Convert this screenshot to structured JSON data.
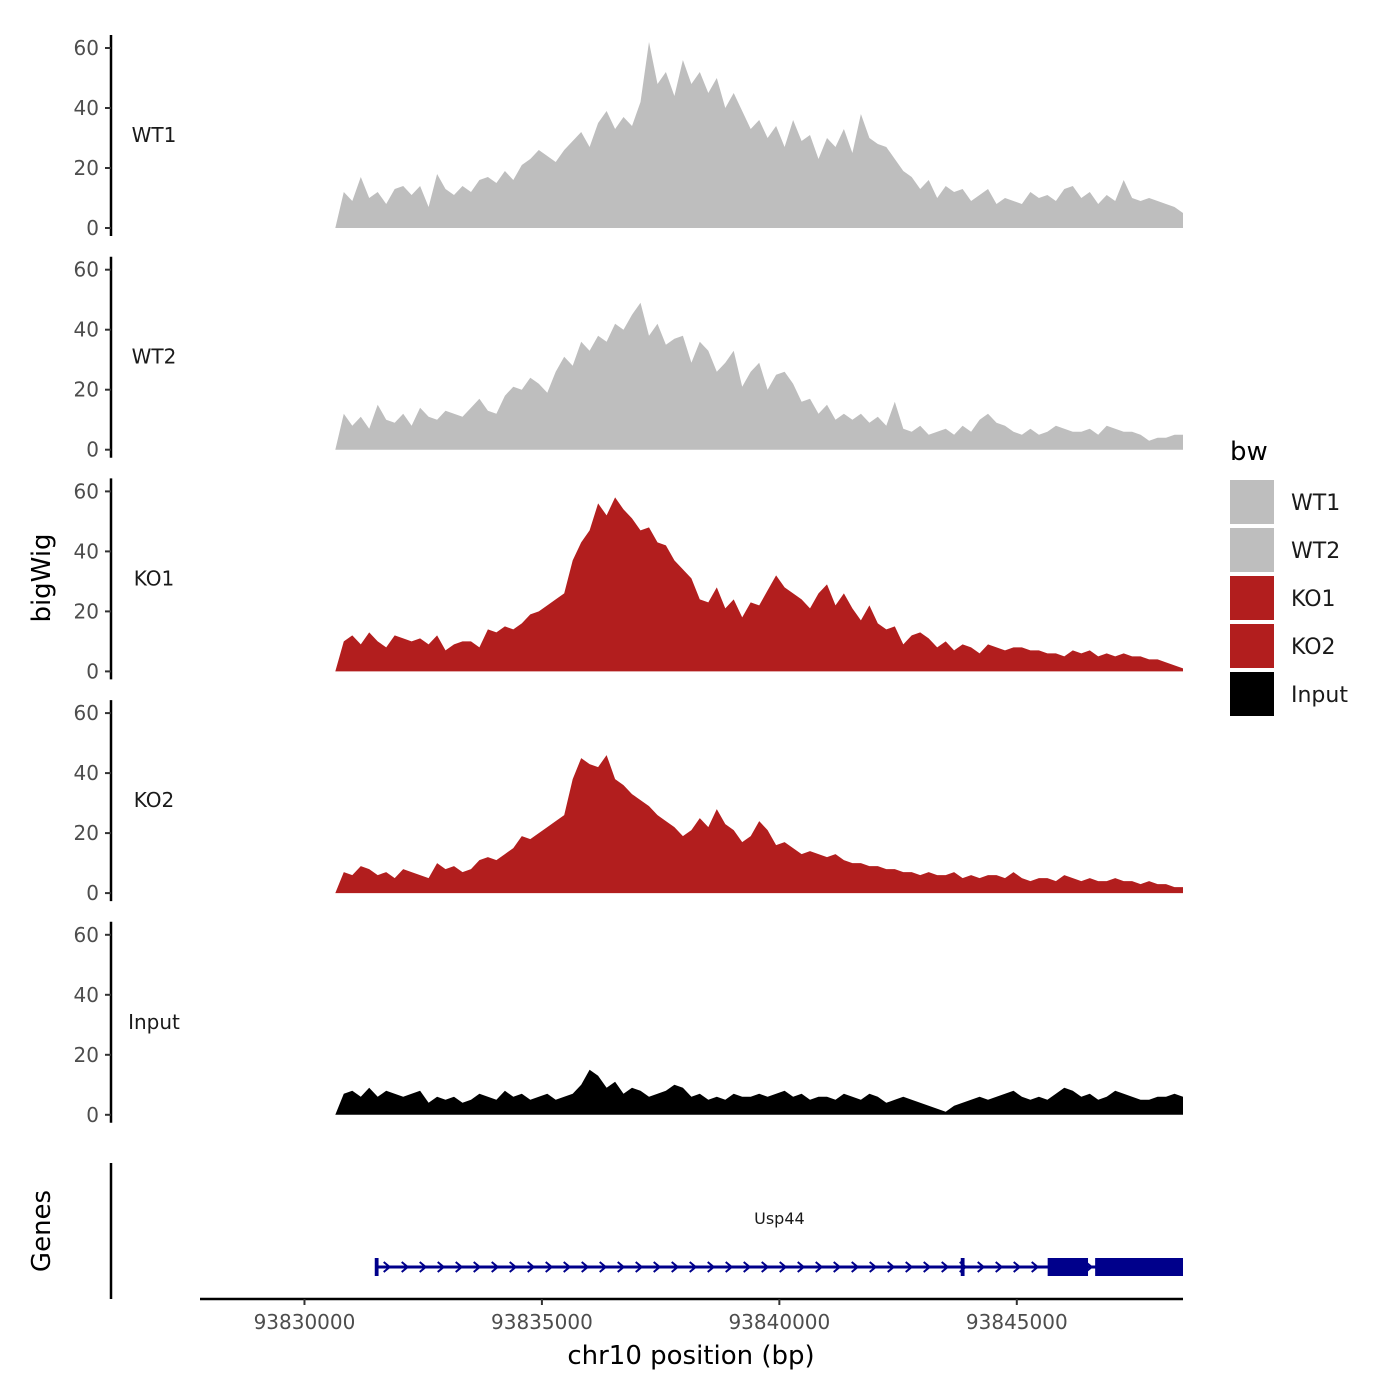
{
  "chart_data": {
    "type": "area",
    "chromosome": "chr10",
    "xlabel": "chr10 position (bp)",
    "ylabel": "bigWig",
    "genes_panel_label": "Genes",
    "xlim": [
      93827800,
      93848500
    ],
    "x_ticks": [
      93830000,
      93835000,
      93840000,
      93845000
    ],
    "x_tick_labels": [
      "93830000",
      "93835000",
      "93840000",
      "93845000"
    ],
    "ylim": [
      0,
      64
    ],
    "y_ticks": [
      0,
      20,
      40,
      60
    ],
    "y_tick_labels": [
      "0",
      "20",
      "40",
      "60"
    ],
    "legend_title": "bw",
    "legend_position": "right",
    "region_start": 93830650,
    "region_end": 93848500,
    "series": [
      {
        "name": "WT1",
        "color": "#bebebe",
        "values": [
          0,
          12,
          9,
          17,
          10,
          12,
          8,
          13,
          14,
          11,
          14,
          7,
          18,
          13,
          11,
          14,
          12,
          16,
          17,
          15,
          19,
          16,
          21,
          23,
          26,
          24,
          22,
          26,
          29,
          32,
          27,
          35,
          39,
          33,
          37,
          34,
          42,
          62,
          48,
          52,
          44,
          56,
          48,
          52,
          45,
          50,
          40,
          45,
          39,
          33,
          36,
          30,
          34,
          27,
          36,
          29,
          31,
          23,
          30,
          27,
          33,
          25,
          38,
          30,
          28,
          27,
          23,
          19,
          17,
          13,
          16,
          10,
          14,
          12,
          13,
          9,
          11,
          13,
          8,
          10,
          9,
          8,
          12,
          10,
          11,
          9,
          13,
          14,
          10,
          12,
          8,
          11,
          9,
          16,
          10,
          9,
          10,
          9,
          8,
          7,
          5
        ]
      },
      {
        "name": "WT2",
        "color": "#bebebe",
        "values": [
          0,
          12,
          8,
          11,
          7,
          15,
          10,
          9,
          12,
          8,
          14,
          11,
          10,
          13,
          12,
          11,
          14,
          17,
          13,
          12,
          18,
          21,
          20,
          24,
          22,
          19,
          26,
          31,
          28,
          36,
          33,
          38,
          36,
          42,
          40,
          45,
          49,
          38,
          42,
          35,
          37,
          38,
          29,
          36,
          33,
          26,
          29,
          33,
          21,
          26,
          29,
          20,
          25,
          26,
          22,
          16,
          17,
          12,
          15,
          10,
          12,
          10,
          12,
          9,
          11,
          8,
          16,
          7,
          6,
          8,
          5,
          6,
          7,
          5,
          8,
          6,
          10,
          12,
          9,
          8,
          6,
          5,
          7,
          5,
          6,
          8,
          7,
          6,
          6,
          7,
          5,
          8,
          7,
          6,
          6,
          5,
          3,
          4,
          4,
          5,
          5
        ]
      },
      {
        "name": "KO1",
        "color": "#b21e1e",
        "values": [
          0,
          10,
          12,
          9,
          13,
          10,
          8,
          12,
          11,
          10,
          11,
          9,
          12,
          7,
          9,
          10,
          10,
          8,
          14,
          13,
          15,
          14,
          16,
          19,
          20,
          22,
          24,
          26,
          37,
          43,
          47,
          56,
          52,
          58,
          54,
          51,
          47,
          48,
          43,
          42,
          37,
          34,
          31,
          24,
          23,
          28,
          21,
          24,
          18,
          23,
          22,
          27,
          32,
          28,
          26,
          24,
          21,
          26,
          29,
          22,
          26,
          21,
          17,
          22,
          16,
          14,
          15,
          9,
          12,
          13,
          11,
          8,
          10,
          7,
          9,
          8,
          6,
          9,
          8,
          7,
          8,
          8,
          7,
          7,
          6,
          6,
          5,
          7,
          6,
          7,
          5,
          6,
          5,
          6,
          5,
          5,
          4,
          4,
          3,
          2,
          1
        ]
      },
      {
        "name": "KO2",
        "color": "#b21e1e",
        "values": [
          0,
          7,
          6,
          9,
          8,
          6,
          7,
          5,
          8,
          7,
          6,
          5,
          10,
          8,
          9,
          7,
          8,
          11,
          12,
          11,
          13,
          15,
          19,
          18,
          20,
          22,
          24,
          26,
          38,
          45,
          43,
          42,
          46,
          38,
          36,
          33,
          31,
          29,
          26,
          24,
          22,
          19,
          21,
          25,
          22,
          28,
          23,
          21,
          17,
          19,
          24,
          21,
          16,
          17,
          15,
          13,
          14,
          13,
          12,
          13,
          11,
          10,
          10,
          9,
          9,
          8,
          8,
          7,
          7,
          6,
          7,
          6,
          6,
          7,
          5,
          6,
          5,
          6,
          6,
          5,
          7,
          5,
          4,
          5,
          5,
          4,
          6,
          5,
          4,
          5,
          4,
          4,
          5,
          4,
          4,
          3,
          4,
          3,
          3,
          2,
          2
        ]
      },
      {
        "name": "Input",
        "color": "#000000",
        "values": [
          0,
          7,
          8,
          6,
          9,
          6,
          8,
          7,
          6,
          7,
          8,
          4,
          6,
          5,
          6,
          4,
          5,
          7,
          6,
          5,
          8,
          6,
          7,
          5,
          6,
          7,
          5,
          6,
          7,
          10,
          15,
          13,
          9,
          11,
          7,
          9,
          8,
          6,
          7,
          8,
          10,
          9,
          6,
          7,
          5,
          6,
          5,
          7,
          6,
          6,
          7,
          6,
          7,
          8,
          6,
          7,
          5,
          6,
          6,
          5,
          7,
          6,
          5,
          7,
          6,
          4,
          5,
          6,
          5,
          4,
          3,
          2,
          1,
          3,
          4,
          5,
          6,
          5,
          6,
          7,
          8,
          6,
          5,
          6,
          5,
          7,
          9,
          8,
          6,
          7,
          5,
          6,
          8,
          7,
          6,
          5,
          5,
          6,
          6,
          7,
          6
        ]
      }
    ],
    "gene": {
      "name": "Usp44",
      "color": "#00008b",
      "strand": "+",
      "tx_start": 93831500,
      "tx_end": 93848500,
      "exons": [
        {
          "start": 93831480,
          "end": 93831560
        },
        {
          "start": 93843820,
          "end": 93843900
        },
        {
          "start": 93845650,
          "end": 93846500
        },
        {
          "start": 93846650,
          "end": 93848500
        }
      ]
    }
  }
}
